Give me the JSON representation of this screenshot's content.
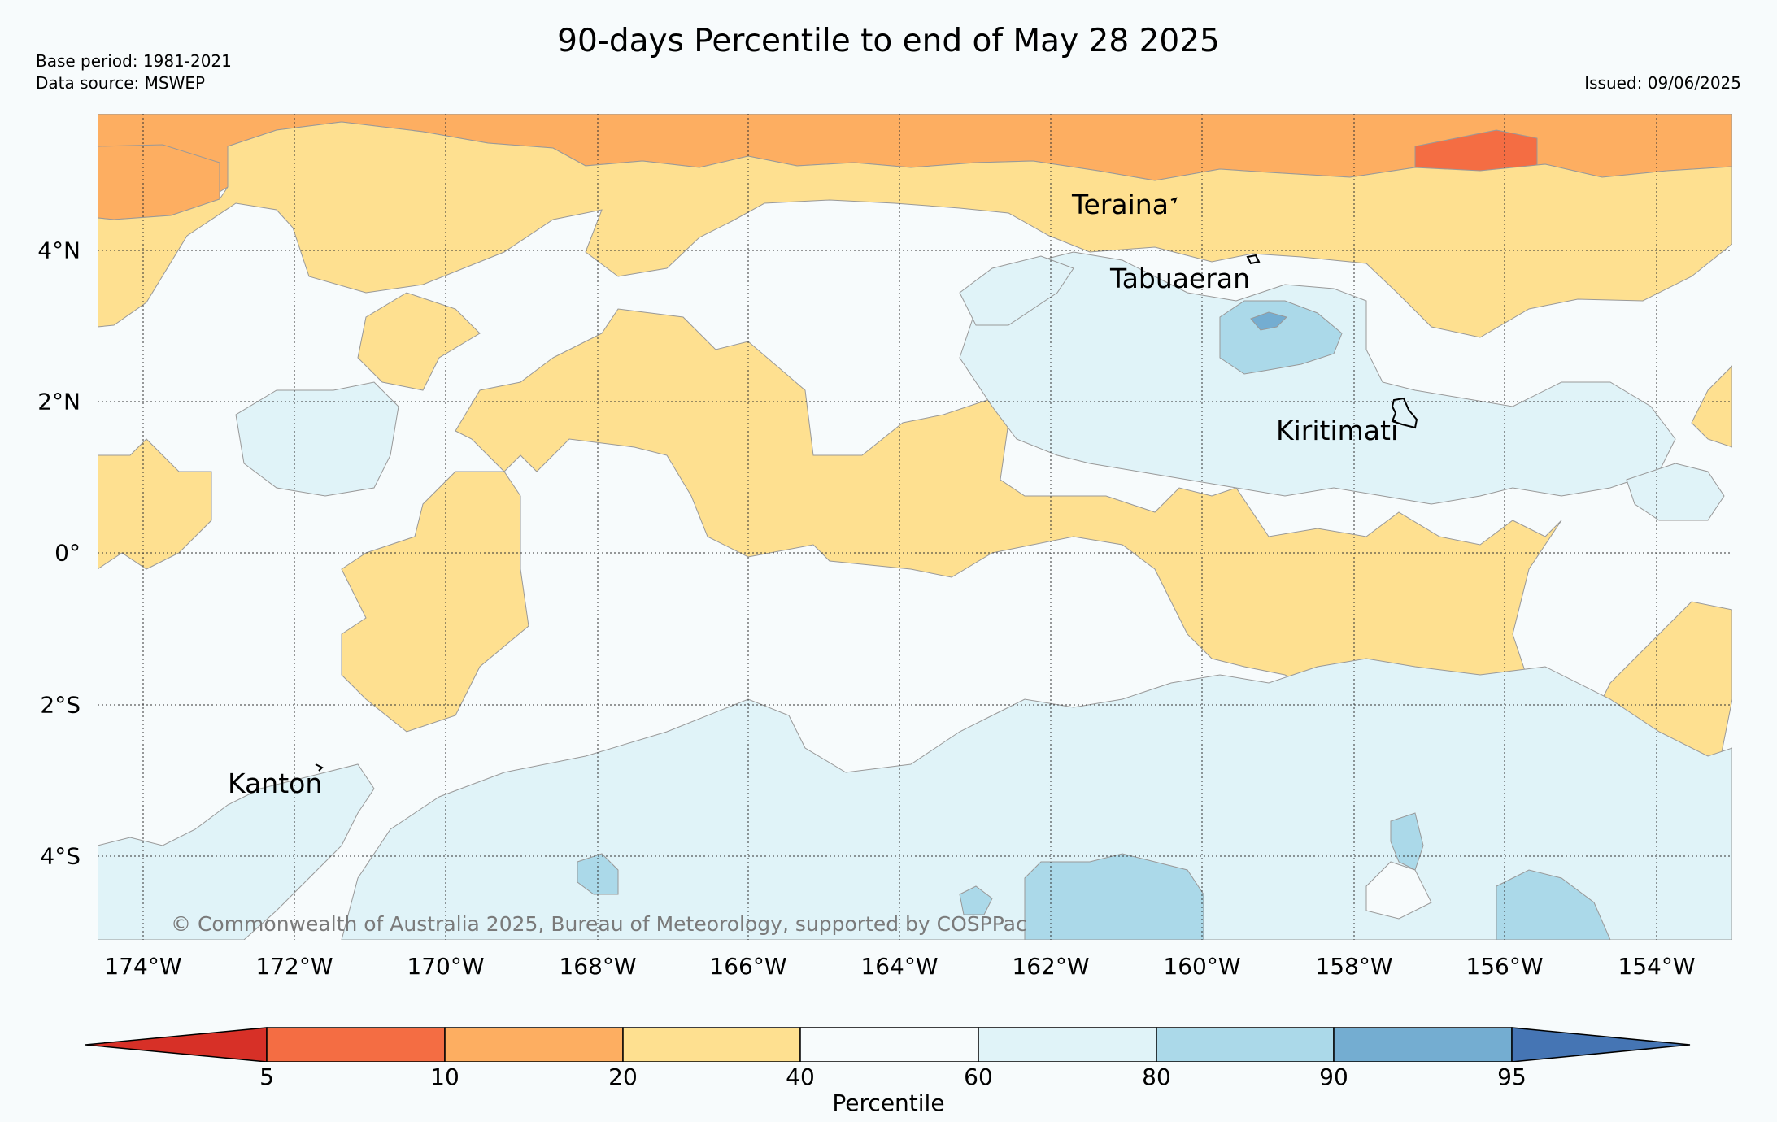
{
  "title": "90-days Percentile to end of May 28 2025",
  "meta": {
    "base_period": "Base period: 1981-2021",
    "data_source": "Data source: MSWEP",
    "issued": "Issued: 09/06/2025"
  },
  "copyright": "© Commonwealth of Australia 2025, Bureau of Meteorology, supported by COSPPac",
  "map": {
    "lat_labels": [
      "4°N",
      "2°N",
      "0°",
      "2°S",
      "4°S"
    ],
    "lon_labels": [
      "174°W",
      "172°W",
      "170°W",
      "168°W",
      "166°W",
      "164°W",
      "162°W",
      "160°W",
      "158°W",
      "156°W",
      "154°W"
    ],
    "places": [
      {
        "name": "Teraina"
      },
      {
        "name": "Tabuaeran"
      },
      {
        "name": "Kiritimati"
      },
      {
        "name": "Kanton"
      }
    ]
  },
  "colorbar": {
    "label": "Percentile",
    "ticks": [
      "5",
      "10",
      "20",
      "40",
      "60",
      "80",
      "90",
      "95"
    ],
    "colors": {
      "below_5": "#d73027",
      "5_10": "#f46d43",
      "10_20": "#fdae61",
      "20_40": "#fee090",
      "40_60": "#f7fbfc",
      "60_80": "#e0f3f8",
      "80_90": "#abd9e9",
      "90_95": "#74add1",
      "above_95": "#4575b4"
    }
  }
}
